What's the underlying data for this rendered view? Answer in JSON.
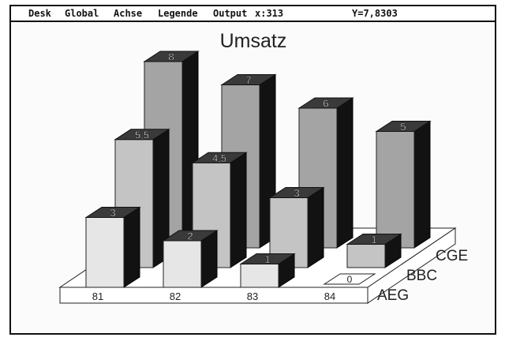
{
  "menubar": {
    "items": [
      "Desk",
      "Global",
      "Achse",
      "Legende",
      "Output"
    ],
    "x_readout": "x:313",
    "y_readout": "Y=7,8303"
  },
  "chart_data": {
    "type": "bar",
    "variant": "3d-grouped",
    "title": "Umsatz",
    "categories": [
      "81",
      "82",
      "83",
      "84"
    ],
    "series": [
      {
        "name": "AEG",
        "values": [
          3,
          2,
          1,
          0
        ],
        "labels": [
          "3",
          "2",
          "1",
          "0"
        ],
        "color": "#e6e6e6"
      },
      {
        "name": "BBC",
        "values": [
          5.5,
          4.5,
          3,
          1
        ],
        "labels": [
          "5,5",
          "4,5",
          "3",
          "1"
        ],
        "color": "#c4c4c4"
      },
      {
        "name": "CGE",
        "values": [
          8,
          7,
          6,
          5
        ],
        "labels": [
          "8",
          "7",
          "6",
          "5"
        ],
        "color": "#a4a4a4"
      }
    ],
    "legend_placement": "right-of-depth-axis",
    "grid": false
  }
}
